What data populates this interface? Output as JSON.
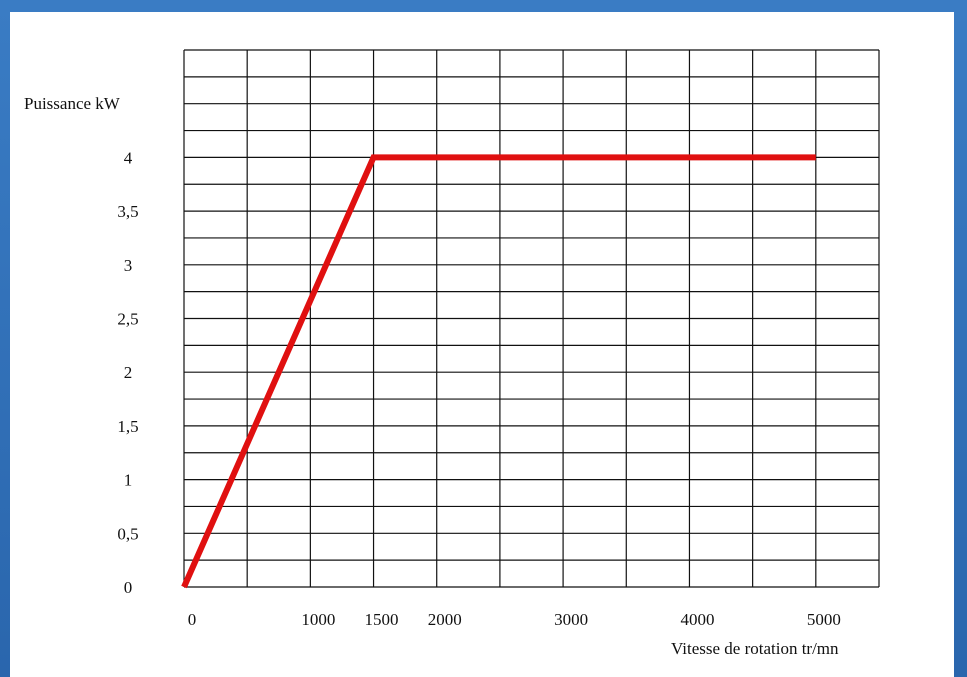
{
  "chart_data": {
    "type": "line",
    "ylabel": "Puissance kW",
    "xlabel": "Vitesse de rotation tr/mn",
    "x_ticks": [
      {
        "value": 0,
        "label": "0"
      },
      {
        "value": 1000,
        "label": "1000"
      },
      {
        "value": 1500,
        "label": "1500"
      },
      {
        "value": 2000,
        "label": "2000"
      },
      {
        "value": 3000,
        "label": "3000"
      },
      {
        "value": 4000,
        "label": "4000"
      },
      {
        "value": 5000,
        "label": "5000"
      }
    ],
    "y_ticks": [
      {
        "value": 0,
        "label": "0"
      },
      {
        "value": 0.5,
        "label": "0,5"
      },
      {
        "value": 1,
        "label": "1"
      },
      {
        "value": 1.5,
        "label": "1,5"
      },
      {
        "value": 2,
        "label": "2"
      },
      {
        "value": 2.5,
        "label": "2,5"
      },
      {
        "value": 3,
        "label": "3"
      },
      {
        "value": 3.5,
        "label": "3,5"
      },
      {
        "value": 4,
        "label": "4"
      }
    ],
    "xlim": [
      0,
      5500
    ],
    "ylim": [
      0,
      5
    ],
    "grid": true,
    "series": [
      {
        "x": [
          0,
          1500,
          5000
        ],
        "y": [
          0,
          4,
          4
        ],
        "color": "#e01010"
      }
    ]
  }
}
